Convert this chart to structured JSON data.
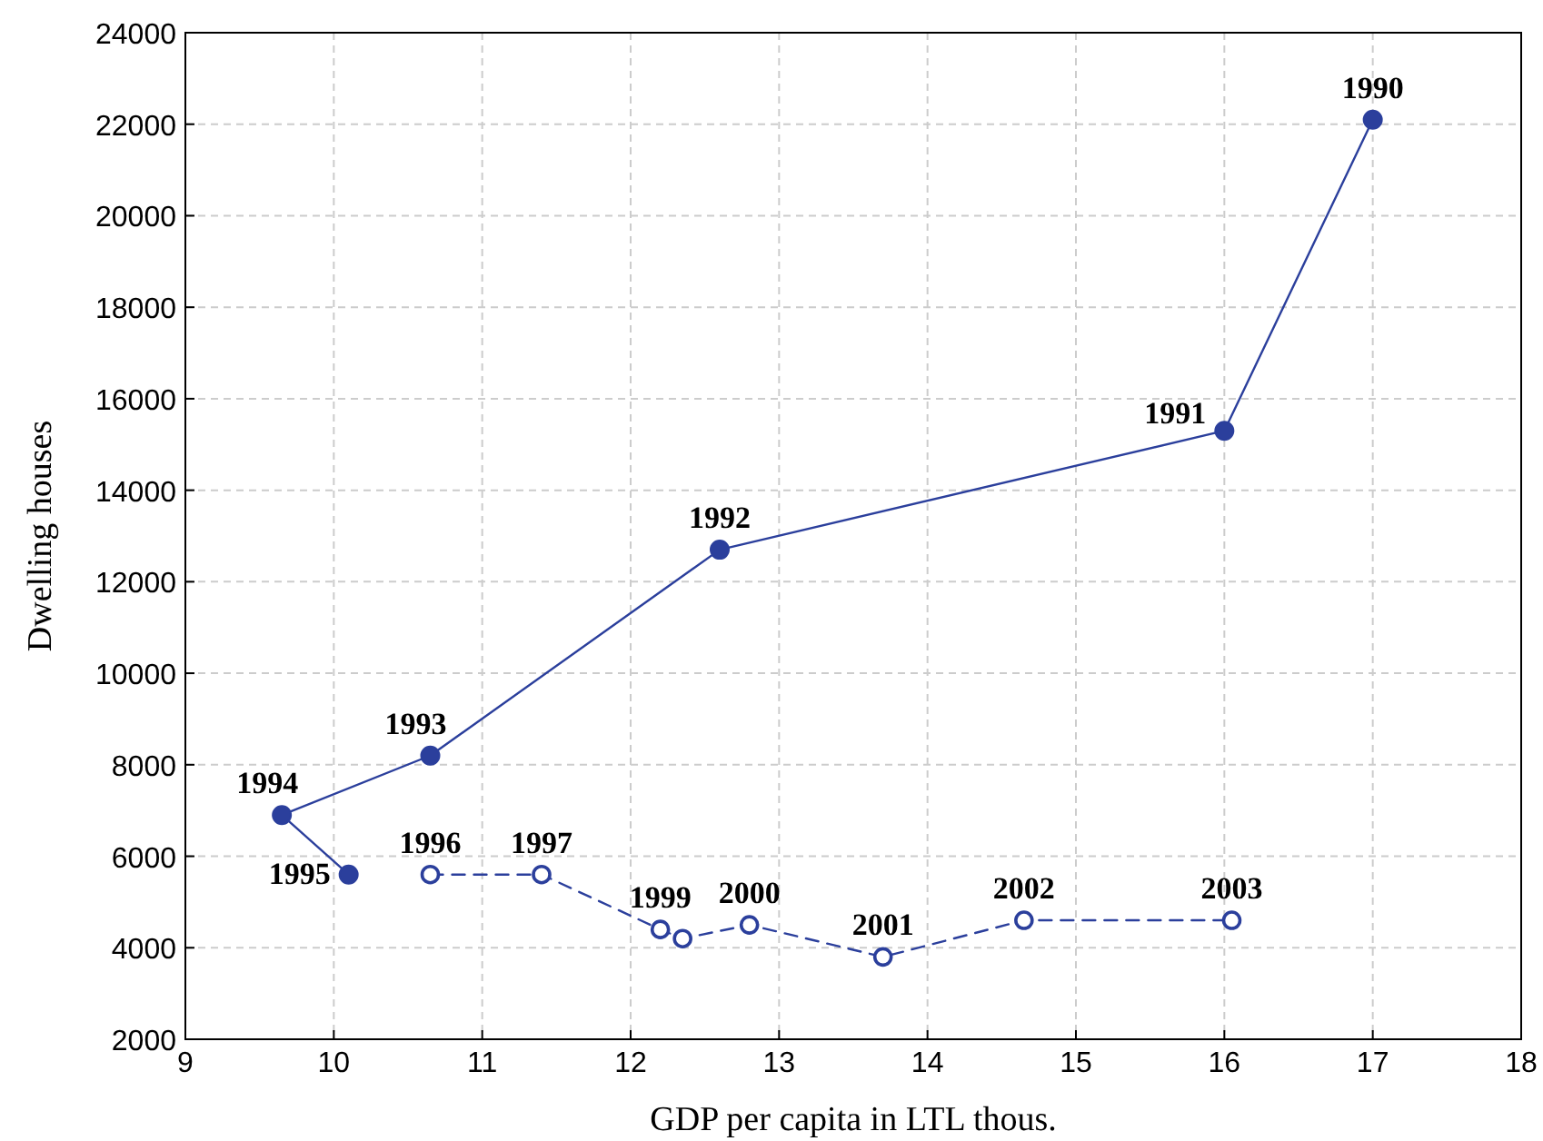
{
  "chart_data": {
    "type": "line",
    "xlabel": "GDP per capita in LTL thous.",
    "ylabel": "Dwelling houses",
    "xlim": [
      9,
      18
    ],
    "xticks": [
      9,
      10,
      11,
      12,
      13,
      14,
      15,
      16,
      17,
      18
    ],
    "ylim": [
      2000,
      24000
    ],
    "yticks": [
      2000,
      4000,
      6000,
      8000,
      10000,
      12000,
      14000,
      16000,
      18000,
      20000,
      22000,
      24000
    ],
    "grid": true,
    "marker": "circle",
    "series": [
      {
        "color": "#2b3f9c",
        "line_style": "solid",
        "x": [
          17.0,
          16.0,
          12.6,
          10.65,
          9.65,
          10.1
        ],
        "values": [
          22100,
          15300,
          12700,
          8200,
          6900,
          5600
        ]
      },
      {
        "color": "#2b3f9c",
        "line_style": "dashed",
        "x": [
          10.65,
          11.4,
          12.2,
          12.35,
          12.8,
          13.7,
          14.65,
          16.05
        ],
        "values": [
          5600,
          5600,
          4400,
          4200,
          4500,
          3800,
          4600,
          4600
        ]
      }
    ],
    "annotations": [
      {
        "text": "1990",
        "x": 17.0,
        "y": 22100
      },
      {
        "text": "1991",
        "x": 16.0,
        "y": 15300
      },
      {
        "text": "1992",
        "x": 12.6,
        "y": 12700
      },
      {
        "text": "1993",
        "x": 10.65,
        "y": 8200
      },
      {
        "text": "1994",
        "x": 9.65,
        "y": 6900
      },
      {
        "text": "1995",
        "x": 10.1,
        "y": 5600
      },
      {
        "text": "1996",
        "x": 10.65,
        "y": 5600
      },
      {
        "text": "1997",
        "x": 11.4,
        "y": 5600
      },
      {
        "text": "1999",
        "x": 12.2,
        "y": 4400
      },
      {
        "text": "2000",
        "x": 12.8,
        "y": 4500
      },
      {
        "text": "2001",
        "x": 13.7,
        "y": 3800
      },
      {
        "text": "2002",
        "x": 14.65,
        "y": 4600
      },
      {
        "text": "2003",
        "x": 16.05,
        "y": 4600
      }
    ]
  }
}
